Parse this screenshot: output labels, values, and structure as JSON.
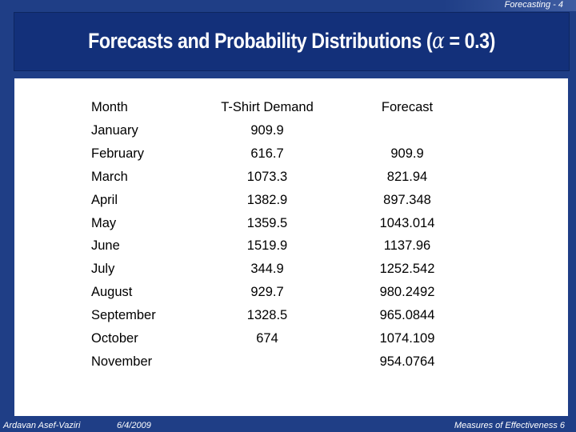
{
  "header": {
    "tag": "Forecasting - 4",
    "title_prefix": "Forecasts and Probability Distributions (",
    "title_alpha": "α",
    "title_suffix": " = 0.3)"
  },
  "table": {
    "columns": [
      "Month",
      "T-Shirt Demand",
      "Forecast"
    ],
    "rows": [
      {
        "month": "January",
        "demand": "909.9",
        "forecast": ""
      },
      {
        "month": "February",
        "demand": "616.7",
        "forecast": "909.9"
      },
      {
        "month": "March",
        "demand": "1073.3",
        "forecast": "821.94"
      },
      {
        "month": "April",
        "demand": "1382.9",
        "forecast": "897.348"
      },
      {
        "month": "May",
        "demand": "1359.5",
        "forecast": "1043.014"
      },
      {
        "month": "June",
        "demand": "1519.9",
        "forecast": "1137.96"
      },
      {
        "month": "July",
        "demand": "344.9",
        "forecast": "1252.542"
      },
      {
        "month": "August",
        "demand": "929.7",
        "forecast": "980.2492"
      },
      {
        "month": "September",
        "demand": "1328.5",
        "forecast": "965.0844"
      },
      {
        "month": "October",
        "demand": "674",
        "forecast": "1074.109"
      },
      {
        "month": "November",
        "demand": "",
        "forecast": "954.0764"
      }
    ]
  },
  "footer": {
    "author": "Ardavan Asef-Vaziri",
    "date": "6/4/2009",
    "right": "Measures of Effectiveness  6"
  }
}
